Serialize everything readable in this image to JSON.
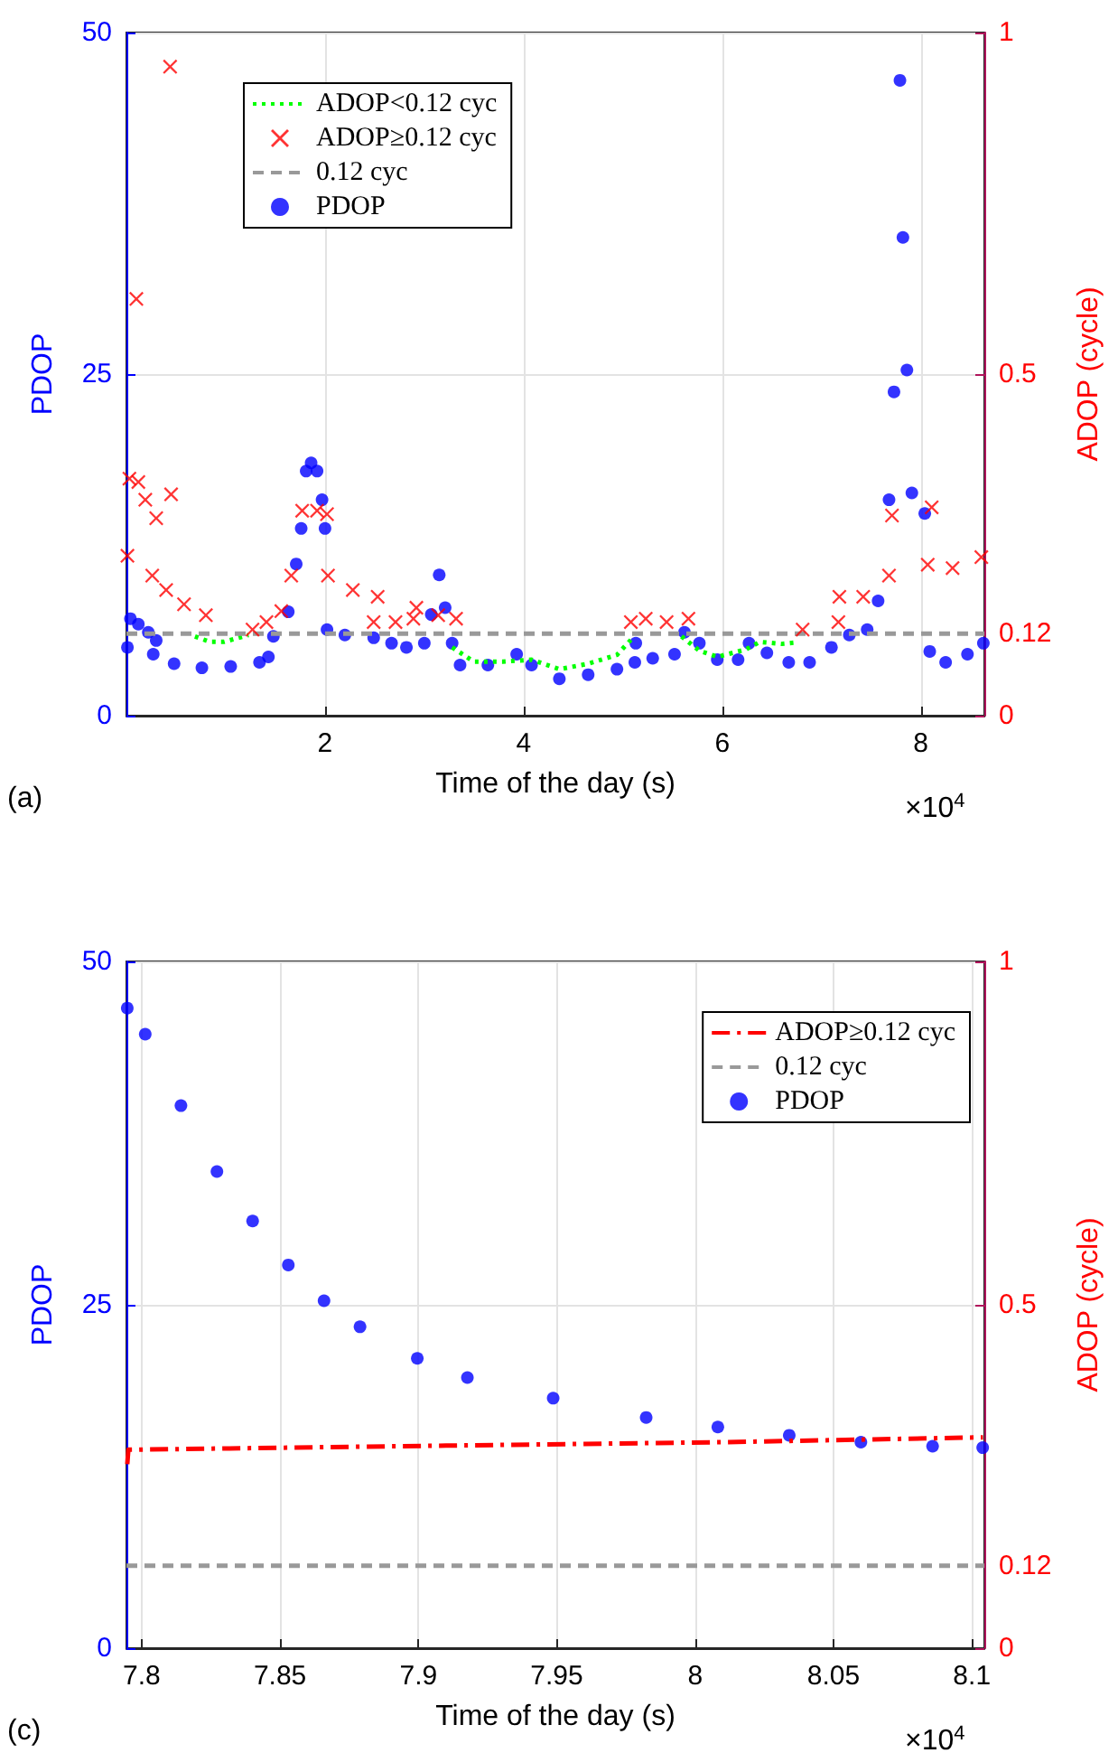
{
  "chart_data": [
    {
      "type": "scatter",
      "xlabel": "Time of the day (s)",
      "ylabel": "PDOP",
      "y2label": "ADOP (cycle)",
      "annotations": [
        "(a)",
        "×10$^{4}$"
      ],
      "xlim": [
        0,
        8.64
      ],
      "xticks": [
        2,
        4,
        6,
        8
      ],
      "ylim": [
        0,
        50
      ],
      "yticks": [
        0,
        25,
        50
      ],
      "y2lim": [
        0,
        1
      ],
      "y2ticks": [
        0,
        0.12,
        0.5,
        1
      ],
      "grid": true,
      "legend": "top left",
      "series": [
        {
          "name": "ADOP<0.12 cyc",
          "type": "line",
          "axis": "y2",
          "color": "#00ff00",
          "line_style": "dotted",
          "marker": "none",
          "x": [
            0.69,
            0.84,
            0.98,
            1.23,
            2,
            3.28,
            3.5,
            3.79,
            4.08,
            4.36,
            4.65,
            4.94,
            5.08,
            5.4,
            5.59,
            5.77,
            5.95,
            6.24,
            6.38,
            6.6,
            6.74
          ],
          "values": [
            0.116,
            0.108,
            0.108,
            0.118,
            null,
            0.1,
            0.079,
            0.079,
            0.082,
            0.068,
            0.076,
            0.089,
            0.111,
            null,
            0.116,
            0.095,
            0.086,
            0.097,
            0.108,
            0.105,
            0.107
          ]
        },
        {
          "name": "ADOP≥0.12 cyc",
          "axis": "y2",
          "color": "#ff0000",
          "marker": "cross",
          "x": [
            0.1,
            0.44,
            0.01,
            0.03,
            0.12,
            0.19,
            0.3,
            0.45,
            0.26,
            0.4,
            0.58,
            0.8,
            1.27,
            1.41,
            1.56,
            1.66,
            1.77,
            1.92,
            2.02,
            2.03,
            2.28,
            2.53,
            2.49,
            2.71,
            2.89,
            2.92,
            3.14,
            3.32,
            5.08,
            5.23,
            5.44,
            5.66,
            6.81,
            7.17,
            7.18,
            7.42,
            7.68,
            7.71,
            8.11,
            8.07,
            8.32,
            8.61
          ],
          "values": [
            0.61,
            0.95,
            0.234,
            0.347,
            0.342,
            0.316,
            0.289,
            0.324,
            0.205,
            0.184,
            0.163,
            0.147,
            0.126,
            0.137,
            0.153,
            0.205,
            0.3,
            0.3,
            0.295,
            0.205,
            0.184,
            0.174,
            0.137,
            0.137,
            0.142,
            0.158,
            0.147,
            0.142,
            0.137,
            0.142,
            0.137,
            0.142,
            0.126,
            0.137,
            0.174,
            0.174,
            0.205,
            0.293,
            0.305,
            0.221,
            0.216,
            0.232
          ]
        },
        {
          "name": "0.12 cyc",
          "type": "line",
          "axis": "y2",
          "color": "#999999",
          "line_style": "dashed",
          "marker": "none",
          "x": [
            0,
            8.64
          ],
          "values": [
            0.12,
            0.12
          ]
        },
        {
          "name": "PDOP",
          "color": "#0000ff",
          "marker": "circle",
          "x": [
            0.01,
            0.04,
            0.12,
            0.22,
            0.3,
            0.27,
            0.48,
            0.76,
            1.05,
            1.34,
            1.43,
            1.48,
            1.63,
            1.71,
            1.76,
            1.81,
            1.86,
            1.92,
            1.97,
            2.0,
            2.02,
            2.2,
            2.49,
            2.67,
            2.82,
            3.0,
            3.07,
            3.15,
            3.21,
            3.28,
            3.36,
            3.64,
            3.93,
            4.08,
            4.36,
            4.65,
            4.94,
            5.12,
            5.13,
            5.3,
            5.52,
            5.62,
            5.77,
            5.95,
            6.16,
            6.27,
            6.45,
            6.67,
            6.88,
            7.1,
            7.28,
            7.46,
            7.57,
            7.68,
            7.73,
            7.79,
            7.82,
            7.86,
            7.91,
            8.04,
            8.09,
            8.25,
            8.47,
            8.63
          ],
          "values": [
            5.0,
            7.1,
            6.7,
            6.1,
            5.5,
            4.5,
            3.8,
            3.5,
            3.6,
            3.9,
            4.3,
            5.8,
            7.6,
            11.1,
            13.7,
            17.9,
            18.5,
            17.9,
            15.8,
            13.7,
            6.3,
            5.9,
            5.7,
            5.3,
            5.0,
            5.3,
            7.4,
            10.3,
            7.9,
            5.3,
            3.7,
            3.7,
            4.5,
            3.7,
            2.7,
            3.0,
            3.4,
            3.9,
            5.3,
            4.2,
            4.5,
            6.1,
            5.3,
            4.1,
            4.1,
            5.3,
            4.6,
            3.9,
            3.9,
            5.0,
            5.9,
            6.3,
            8.4,
            15.8,
            23.7,
            46.5,
            35,
            25.3,
            16.3,
            14.8,
            4.7,
            3.9,
            4.5,
            5.3
          ]
        }
      ]
    },
    {
      "type": "scatter",
      "xlabel": "Time of the day (s)",
      "ylabel": "PDOP",
      "y2label": "ADOP (cycle)",
      "annotations": [
        "(c)",
        "×10$^{4}$"
      ],
      "xlim": [
        7.7945,
        8.1045
      ],
      "xticks": [
        7.8,
        7.85,
        7.9,
        7.95,
        8,
        8.05,
        8.1
      ],
      "ylim": [
        0,
        50
      ],
      "yticks": [
        0,
        25,
        50
      ],
      "y2lim": [
        0,
        1
      ],
      "y2ticks": [
        0,
        0.12,
        0.5,
        1
      ],
      "grid": true,
      "legend": "top right",
      "series": [
        {
          "name": "ADOP≥0.12 cyc",
          "type": "line",
          "axis": "y2",
          "color": "#ff0000",
          "line_style": "dashdot",
          "marker": "none",
          "x": [
            7.7948,
            7.7952,
            7.91,
            8.01,
            8.104
          ],
          "values": [
            0.268,
            0.289,
            0.295,
            0.3,
            0.307
          ]
        },
        {
          "name": "0.12 cyc",
          "type": "line",
          "axis": "y2",
          "color": "#999999",
          "line_style": "dashed",
          "marker": "none",
          "x": [
            7.7945,
            8.1045
          ],
          "values": [
            0.12,
            0.12
          ]
        },
        {
          "name": "PDOP",
          "color": "#0000ff",
          "marker": "circle",
          "x": [
            7.7948,
            7.8013,
            7.8142,
            7.8272,
            7.8401,
            7.853,
            7.8659,
            7.8789,
            7.8996,
            7.9177,
            7.9487,
            7.9823,
            8.0082,
            8.034,
            8.0599,
            8.0858,
            8.1039
          ],
          "values": [
            46.6,
            44.7,
            39.5,
            34.7,
            31.1,
            27.9,
            25.3,
            23.4,
            21.1,
            19.7,
            18.2,
            16.8,
            16.1,
            15.5,
            15.0,
            14.7,
            14.6
          ]
        }
      ]
    }
  ]
}
